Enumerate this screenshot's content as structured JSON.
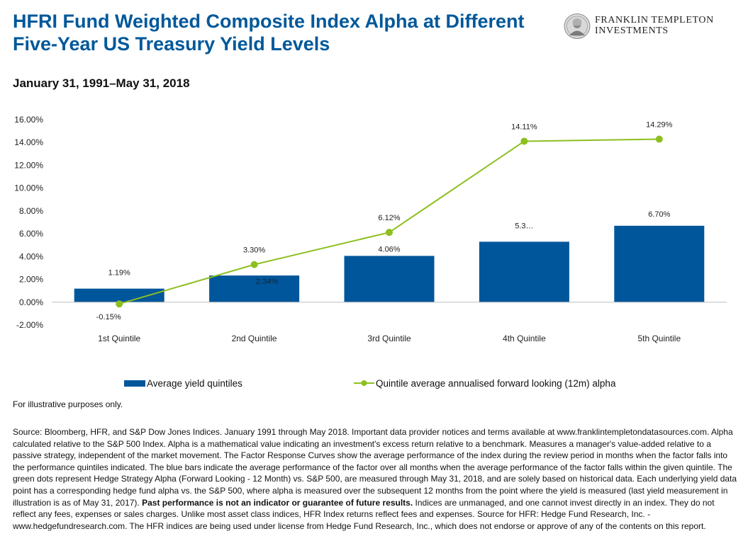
{
  "header": {
    "title": "HFRI Fund Weighted Composite Index Alpha at Different Five-Year US Treasury Yield Levels",
    "subtitle": "January 31, 1991–May 31, 2018",
    "logo_line1": "FRANKLIN TEMPLETON",
    "logo_line2": "INVESTMENTS"
  },
  "chart_data": {
    "type": "bar",
    "categories": [
      "1st Quintile",
      "2nd Quintile",
      "3rd Quintile",
      "4th Quintile",
      "5th Quintile"
    ],
    "series": [
      {
        "name": "Average yield quintiles",
        "type": "bar",
        "color": "#00569b",
        "values": [
          1.19,
          2.34,
          4.06,
          5.3,
          6.7
        ],
        "labels": [
          "1.19%",
          "2.34%",
          "4.06%",
          "5.3…",
          "6.70%"
        ]
      },
      {
        "name": "Quintile average annualised forward looking (12m) alpha",
        "type": "line",
        "color": "#8dbf1f",
        "values": [
          -0.15,
          3.3,
          6.12,
          14.11,
          14.29
        ],
        "labels": [
          "-0.15%",
          "3.30%",
          "6.12%",
          "14.11%",
          "14.29%"
        ]
      }
    ],
    "ylim": [
      -2,
      16
    ],
    "yticks": [
      "-2.00%",
      "0.00%",
      "2.00%",
      "4.00%",
      "6.00%",
      "8.00%",
      "10.00%",
      "12.00%",
      "14.00%",
      "16.00%"
    ],
    "xlabel": "",
    "ylabel": "",
    "grid": false,
    "legend": "bottom"
  },
  "footer": {
    "illustrative": "For illustrative purposes only.",
    "source_part1": "Source: Bloomberg, HFR, and S&P Dow Jones Indices. January 1991 through May 2018. Important data provider notices and terms available at www.franklintempletondatasources.com. Alpha calculated relative to the S&P 500 Index. Alpha is a mathematical value indicating an investment's excess return relative to a benchmark. Measures a manager's value-added relative to a passive strategy, independent of the market movement. The Factor Response Curves show the average performance of the index during the review period in months when the factor falls into the performance quintiles indicated. The blue bars indicate the average performance of the factor over all months when the average performance of the factor falls within the given quintile. The green dots represent Hedge Strategy Alpha (Forward Looking  - 12 Month) vs. S&P 500, are measured through May 31, 2018, and are solely based on historical data. Each underlying yield data point has a corresponding hedge fund alpha vs. the S&P 500, where alpha is measured over the subsequent 12 months from the point where the yield is measured (last yield measurement in illustration is as of May 31, 2017). ",
    "source_bold": "Past performance is not an indicator or guarantee of future results.",
    "source_part2": " Indices are unmanaged, and one cannot invest directly in an index. They do not reflect any fees, expenses or sales charges. Unlike most asset class indices, HFR Index returns reflect fees and expenses. Source for HFR: Hedge Fund Research, Inc. - www.hedgefundresearch.com. The HFR indices are being used under license from Hedge Fund Research, Inc., which does not endorse or approve of any of the contents on this report."
  }
}
